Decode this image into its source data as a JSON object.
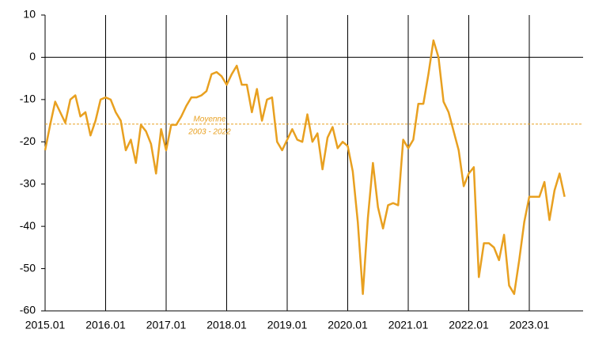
{
  "chart_data": {
    "type": "line",
    "categories": [
      "2015.01",
      null,
      null,
      null,
      null,
      null,
      null,
      null,
      null,
      null,
      null,
      null,
      "2016.01",
      null,
      null,
      null,
      null,
      null,
      null,
      null,
      null,
      null,
      null,
      null,
      "2017.01",
      null,
      null,
      null,
      null,
      null,
      null,
      null,
      null,
      null,
      null,
      null,
      "2018.01",
      null,
      null,
      null,
      null,
      null,
      null,
      null,
      null,
      null,
      null,
      null,
      "2019.01",
      null,
      null,
      null,
      null,
      null,
      null,
      null,
      null,
      null,
      null,
      null,
      "2020.01",
      null,
      null,
      null,
      null,
      null,
      null,
      null,
      null,
      null,
      null,
      null,
      "2021.01",
      null,
      null,
      null,
      null,
      null,
      null,
      null,
      null,
      null,
      null,
      null,
      "2022.01",
      null,
      null,
      null,
      null,
      null,
      null,
      null,
      null,
      null,
      null,
      null,
      "2023.01",
      null,
      null,
      null,
      null,
      null,
      null,
      null
    ],
    "series": [
      {
        "color": "#e8a020",
        "values": [
          -22,
          -16,
          -10.5,
          -13,
          -15.5,
          -10,
          -9,
          -14,
          -13,
          -18.5,
          -15,
          -10,
          -9.5,
          -10,
          -13,
          -15,
          -22,
          -19.5,
          -25,
          -16,
          -17.5,
          -20.5,
          -27.5,
          -17,
          -22,
          -16,
          -16,
          -14,
          -11.5,
          -9.5,
          -9.5,
          -9,
          -8,
          -4,
          -3.5,
          -4.5,
          -6.5,
          -4,
          -2,
          -6.5,
          -6.5,
          -13,
          -7.5,
          -15,
          -10,
          -9.5,
          -20,
          -22,
          -19.5,
          -17,
          -19.5,
          -20,
          -13.5,
          -20,
          -18,
          -26.5,
          -19,
          -16.5,
          -21.5,
          -20,
          -21,
          -27,
          -39,
          -56,
          -38,
          -25,
          -35.5,
          -40.5,
          -35,
          -34.5,
          -35,
          -19.5,
          -21.5,
          -19.5,
          -11,
          -11,
          -4,
          4,
          0,
          -10.5,
          -13,
          -17.5,
          -22,
          -30.5,
          -27.5,
          -26,
          -52,
          -44,
          -44,
          -45,
          -48,
          -42,
          -54,
          -56,
          -48,
          -39,
          -33,
          -33,
          -33,
          -29.5,
          -38.5,
          -31.5,
          -27.5,
          -33
        ]
      }
    ],
    "mean": {
      "value": -15.8,
      "label": [
        "Moyenne",
        "2003 - 2022"
      ],
      "color": "#e8a020"
    },
    "ylim": [
      -60,
      10
    ],
    "yticks": [
      -60,
      -50,
      -40,
      -30,
      -20,
      -10,
      0,
      10
    ]
  }
}
